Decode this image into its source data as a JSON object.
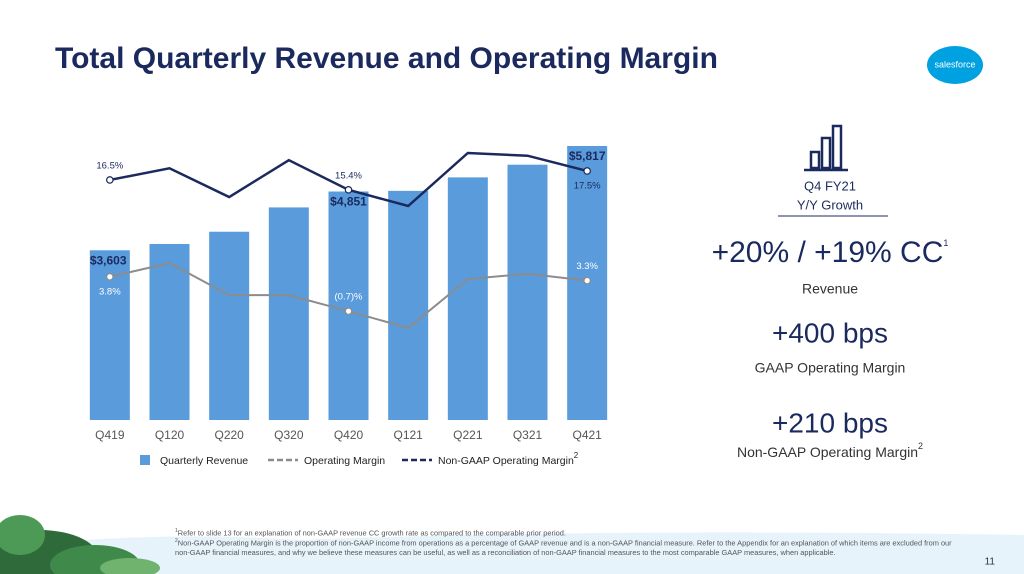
{
  "title": "Total Quarterly Revenue and Operating Margin",
  "logo": "salesforce",
  "chart_data": {
    "type": "bar-line",
    "categories": [
      "Q419",
      "Q120",
      "Q220",
      "Q320",
      "Q420",
      "Q121",
      "Q221",
      "Q321",
      "Q421"
    ],
    "series": [
      {
        "name": "Quarterly Revenue",
        "type": "bar",
        "color": "#5a9bdc",
        "values": [
          3603,
          3737,
          3997,
          4513,
          4851,
          4865,
          5151,
          5420,
          5817
        ],
        "value_labels": [
          "$3,603",
          null,
          null,
          null,
          "$4,851",
          null,
          null,
          null,
          "$5,817"
        ]
      },
      {
        "name": "Operating Margin",
        "type": "line",
        "color": "#8c8c8c",
        "values": [
          3.8,
          5.6,
          1.4,
          1.4,
          -0.7,
          -2.9,
          3.5,
          4.2,
          3.3
        ],
        "value_labels": [
          "3.8%",
          null,
          null,
          null,
          "(0.7)%",
          null,
          null,
          null,
          "3.3%"
        ]
      },
      {
        "name": "Non-GAAP Operating Margin",
        "type": "line",
        "color": "#1b2a5e",
        "note": "2",
        "values": [
          16.5,
          17.8,
          14.6,
          18.7,
          15.4,
          13.6,
          19.5,
          19.2,
          17.5
        ],
        "value_labels": [
          "16.5%",
          null,
          null,
          null,
          "15.4%",
          null,
          null,
          null,
          "17.5%"
        ]
      }
    ]
  },
  "highlights": {
    "period": "Q4 FY21",
    "subtitle": "Y/Y Growth",
    "revenue_growth": "+20% / +19% CC",
    "revenue_note": "1",
    "revenue_label": "Revenue",
    "gaap_change": "+400 bps",
    "gaap_label": "GAAP Operating Margin",
    "nongaap_change": "+210 bps",
    "nongaap_label": "Non-GAAP Operating Margin",
    "nongaap_note": "2"
  },
  "footnotes": [
    {
      "mark": "1",
      "text": "Refer to slide 13 for an explanation of non-GAAP revenue CC growth rate as compared to the comparable prior period."
    },
    {
      "mark": "2",
      "text": "Non-GAAP Operating Margin is the proportion of non-GAAP income from operations as a percentage of GAAP revenue and is a non-GAAP financial measure. Refer to the Appendix for an explanation of which items are excluded from our non-GAAP financial measures, and why we believe these measures can be useful, as well as a reconciliation of non-GAAP financial measures to the most comparable GAAP measures, when applicable."
    }
  ],
  "page_number": "11"
}
